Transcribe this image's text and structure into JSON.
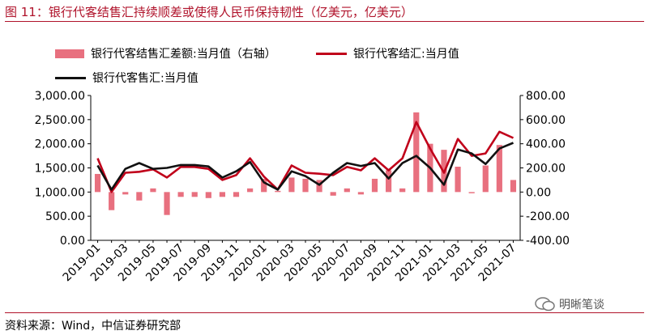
{
  "header": {
    "title": "图 11：银行代客结售汇持续顺差或使得人民币保持韧性（亿美元，亿美元）"
  },
  "legend": {
    "bar": "银行代客结售汇差额:当月值（右轴）",
    "line_red": "银行代客结汇:当月值",
    "line_black": "银行代客售汇:当月值"
  },
  "footer": {
    "source": "资料来源：Wind，中信证券研究部",
    "watermark": "明晰笔谈"
  },
  "colors": {
    "bar": "#e8707f",
    "red": "#c0001a",
    "black": "#111111",
    "accent": "#b0132b"
  },
  "chart_data": {
    "type": "bar+line",
    "title": "",
    "categories": [
      "2019-01",
      "2019-02",
      "2019-03",
      "2019-04",
      "2019-05",
      "2019-06",
      "2019-07",
      "2019-08",
      "2019-09",
      "2019-10",
      "2019-11",
      "2019-12",
      "2020-01",
      "2020-02",
      "2020-03",
      "2020-04",
      "2020-05",
      "2020-06",
      "2020-07",
      "2020-08",
      "2020-09",
      "2020-10",
      "2020-11",
      "2020-12",
      "2021-01",
      "2021-02",
      "2021-03",
      "2021-04",
      "2021-05",
      "2021-06",
      "2021-07"
    ],
    "x_tick_labels": [
      "2019-01",
      "2019-03",
      "2019-05",
      "2019-07",
      "2019-09",
      "2019-11",
      "2020-01",
      "2020-03",
      "2020-05",
      "2020-07",
      "2020-09",
      "2020-11",
      "2021-01",
      "2021-03",
      "2021-05",
      "2021-07"
    ],
    "left_axis": {
      "ylim": [
        0,
        3000
      ],
      "ticks": [
        "0.00",
        "500.00",
        "1,000.00",
        "1,500.00",
        "2,000.00",
        "2,500.00",
        "3,000.00"
      ]
    },
    "right_axis": {
      "ylim": [
        -400,
        800
      ],
      "ticks": [
        "-400.00",
        "-200.00",
        "0.00",
        "200.00",
        "400.00",
        "600.00",
        "800.00"
      ]
    },
    "series": [
      {
        "name": "银行代客结售汇差额:当月值（右轴）",
        "type": "bar",
        "axis": "right",
        "values": [
          150,
          -150,
          -20,
          -70,
          30,
          -190,
          -40,
          -40,
          -50,
          -40,
          -40,
          30,
          110,
          10,
          120,
          110,
          100,
          -30,
          30,
          -20,
          110,
          180,
          30,
          660,
          400,
          350,
          210,
          -10,
          220,
          390,
          100
        ]
      },
      {
        "name": "银行代客结汇:当月值",
        "type": "line",
        "axis": "left",
        "values": [
          1700,
          1000,
          1400,
          1420,
          1470,
          1300,
          1520,
          1520,
          1480,
          1250,
          1350,
          1700,
          1320,
          1050,
          1550,
          1400,
          1380,
          1350,
          1520,
          1450,
          1700,
          1450,
          1700,
          2450,
          1900,
          1400,
          2100,
          1750,
          1800,
          2250,
          2120
        ]
      },
      {
        "name": "银行代客售汇:当月值",
        "type": "line",
        "axis": "left",
        "values": [
          1550,
          1050,
          1480,
          1600,
          1480,
          1500,
          1560,
          1560,
          1530,
          1300,
          1430,
          1620,
          1200,
          1050,
          1430,
          1330,
          1150,
          1400,
          1600,
          1540,
          1600,
          1280,
          1600,
          1750,
          1500,
          1150,
          1880,
          1800,
          1580,
          1900,
          2020
        ]
      }
    ]
  }
}
